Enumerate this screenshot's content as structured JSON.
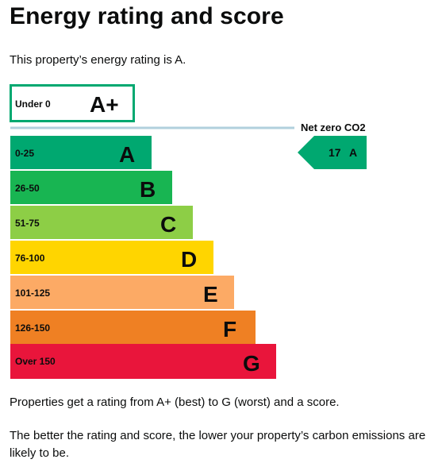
{
  "heading": "Energy rating and score",
  "intro": "This property’s energy rating is A.",
  "bands": [
    {
      "range": "Under 0",
      "letter": "A+",
      "color": "#ffffff",
      "outline": "#00a870",
      "text_color": "#0b0c0c"
    },
    {
      "range": "0-25",
      "letter": "A",
      "color": "#00a870",
      "text_color": "#0b0c0c"
    },
    {
      "range": "26-50",
      "letter": "B",
      "color": "#18b552",
      "text_color": "#0b0c0c"
    },
    {
      "range": "51-75",
      "letter": "C",
      "color": "#8dce46",
      "text_color": "#0b0c0c"
    },
    {
      "range": "76-100",
      "letter": "D",
      "color": "#ffd500",
      "text_color": "#0b0c0c"
    },
    {
      "range": "101-125",
      "letter": "E",
      "color": "#fcaa65",
      "text_color": "#0b0c0c"
    },
    {
      "range": "126-150",
      "letter": "F",
      "color": "#ef8023",
      "text_color": "#0b0c0c"
    },
    {
      "range": "Over 150",
      "letter": "G",
      "color": "#e9153b",
      "text_color": "#0b0c0c"
    }
  ],
  "net_zero": {
    "label": "Net zero CO2",
    "line_color": "#b1d0dd"
  },
  "current_rating": {
    "score": "17",
    "letter": "A",
    "color": "#00a870",
    "text_color": "#0b0c0c"
  },
  "footer": {
    "line1": "Properties get a rating from A+ (best) to G (worst) and a score.",
    "line2": "The better the rating and score, the lower your property’s carbon emissions are likely to be."
  }
}
